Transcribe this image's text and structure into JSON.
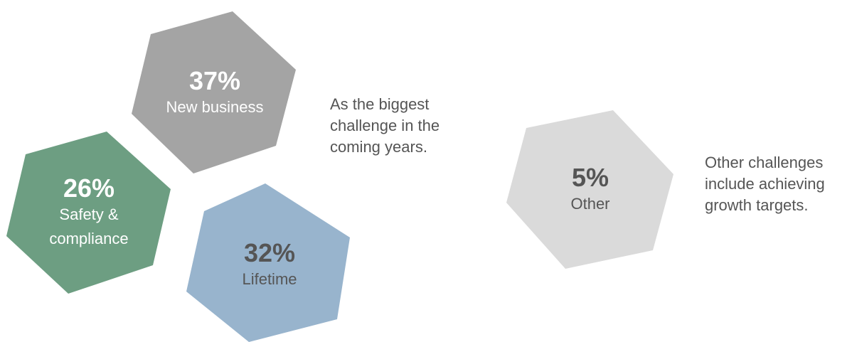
{
  "hexagons": [
    {
      "percent": "37%",
      "label": "New business",
      "fill": "#a4a4a4",
      "text_color": "#ffffff"
    },
    {
      "percent": "26%",
      "label": "Safety & compliance",
      "fill": "#6d9e82",
      "text_color": "#ffffff"
    },
    {
      "percent": "32%",
      "label": "Lifetime",
      "fill": "#98b4cd",
      "text_color": "#555555"
    },
    {
      "percent": "5%",
      "label": "Other",
      "fill": "#dadada",
      "text_color": "#555555"
    }
  ],
  "captions": {
    "main_text": "As the biggest challenge in the coming years.",
    "other_text": "Other challenges include achieving growth targets."
  }
}
